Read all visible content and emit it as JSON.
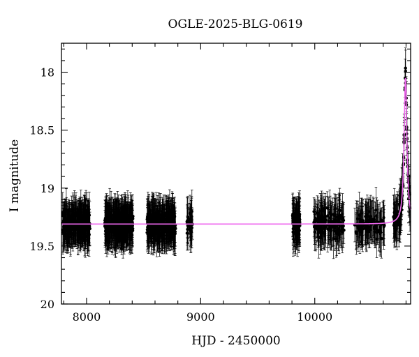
{
  "chart_data": {
    "type": "scatter",
    "title": "OGLE-2025-BLG-0619",
    "xlabel": "HJD - 2450000",
    "ylabel": "I magnitude",
    "xlim": [
      7780,
      10840
    ],
    "ylim": [
      20,
      17.75
    ],
    "y_inverted": true,
    "xticks": [
      8000,
      9000,
      10000
    ],
    "xtick_labels": [
      "8000",
      "9000",
      "10000"
    ],
    "yticks": [
      18,
      18.5,
      19,
      19.5,
      20
    ],
    "ytick_labels": [
      "18",
      "18.5",
      "19",
      "19.5",
      "20"
    ],
    "grid": false,
    "legend": "none",
    "baseline_mag": 19.31,
    "peak_mag": 18.05,
    "peak_hjd": 10795,
    "typical_error": 0.15,
    "seasons": [
      {
        "start": 7790,
        "end": 8030,
        "count": 260
      },
      {
        "start": 8160,
        "end": 8410,
        "count": 300
      },
      {
        "start": 8530,
        "end": 8780,
        "count": 280
      },
      {
        "start": 8880,
        "end": 8930,
        "count": 30
      },
      {
        "start": 9805,
        "end": 9870,
        "count": 90
      },
      {
        "start": 9990,
        "end": 10260,
        "count": 150
      },
      {
        "start": 10350,
        "end": 10610,
        "count": 110
      },
      {
        "start": 10690,
        "end": 10835,
        "count": 110
      }
    ],
    "series": [
      {
        "kind": "observations",
        "color": "#000000"
      },
      {
        "kind": "model",
        "color": "#ee66ee"
      }
    ]
  }
}
